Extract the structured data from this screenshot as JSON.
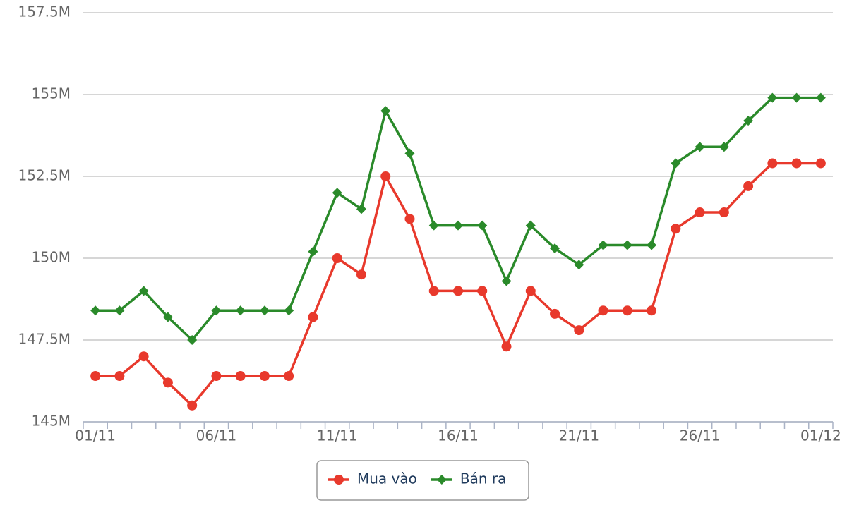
{
  "chart_data": {
    "type": "line",
    "categories": [
      "01/11",
      null,
      null,
      null,
      null,
      "06/11",
      null,
      null,
      null,
      null,
      "11/11",
      null,
      null,
      null,
      null,
      "16/11",
      null,
      null,
      null,
      null,
      "21/11",
      null,
      null,
      null,
      null,
      "26/11",
      null,
      null,
      null,
      null,
      "01/12"
    ],
    "series": [
      {
        "name": "Mua vào",
        "color": "#e8392c",
        "marker": "circle",
        "values": [
          146.4,
          146.4,
          147.0,
          146.2,
          145.5,
          146.4,
          146.4,
          146.4,
          146.4,
          148.2,
          150.0,
          149.5,
          152.5,
          151.2,
          149.0,
          149.0,
          149.0,
          147.3,
          149.0,
          148.3,
          147.8,
          148.4,
          148.4,
          148.4,
          150.9,
          151.4,
          151.4,
          152.2,
          152.9,
          152.9,
          152.9
        ]
      },
      {
        "name": "Bán ra",
        "color": "#2a8a2a",
        "marker": "diamond",
        "values": [
          148.4,
          148.4,
          149.0,
          148.2,
          147.5,
          148.4,
          148.4,
          148.4,
          148.4,
          150.2,
          152.0,
          151.5,
          154.5,
          153.2,
          151.0,
          151.0,
          151.0,
          149.3,
          151.0,
          150.3,
          149.8,
          150.4,
          150.4,
          150.4,
          152.9,
          153.4,
          153.4,
          154.2,
          154.9,
          154.9,
          154.9
        ]
      }
    ],
    "ylim": [
      145,
      157.5
    ],
    "yticks": [
      {
        "value": 145,
        "label": "145M"
      },
      {
        "value": 147.5,
        "label": "147.5M"
      },
      {
        "value": 150,
        "label": "150M"
      },
      {
        "value": 152.5,
        "label": "152.5M"
      },
      {
        "value": 155,
        "label": "155M"
      },
      {
        "value": 157.5,
        "label": "157.5M"
      }
    ],
    "grid": true,
    "legend": "bottom"
  }
}
